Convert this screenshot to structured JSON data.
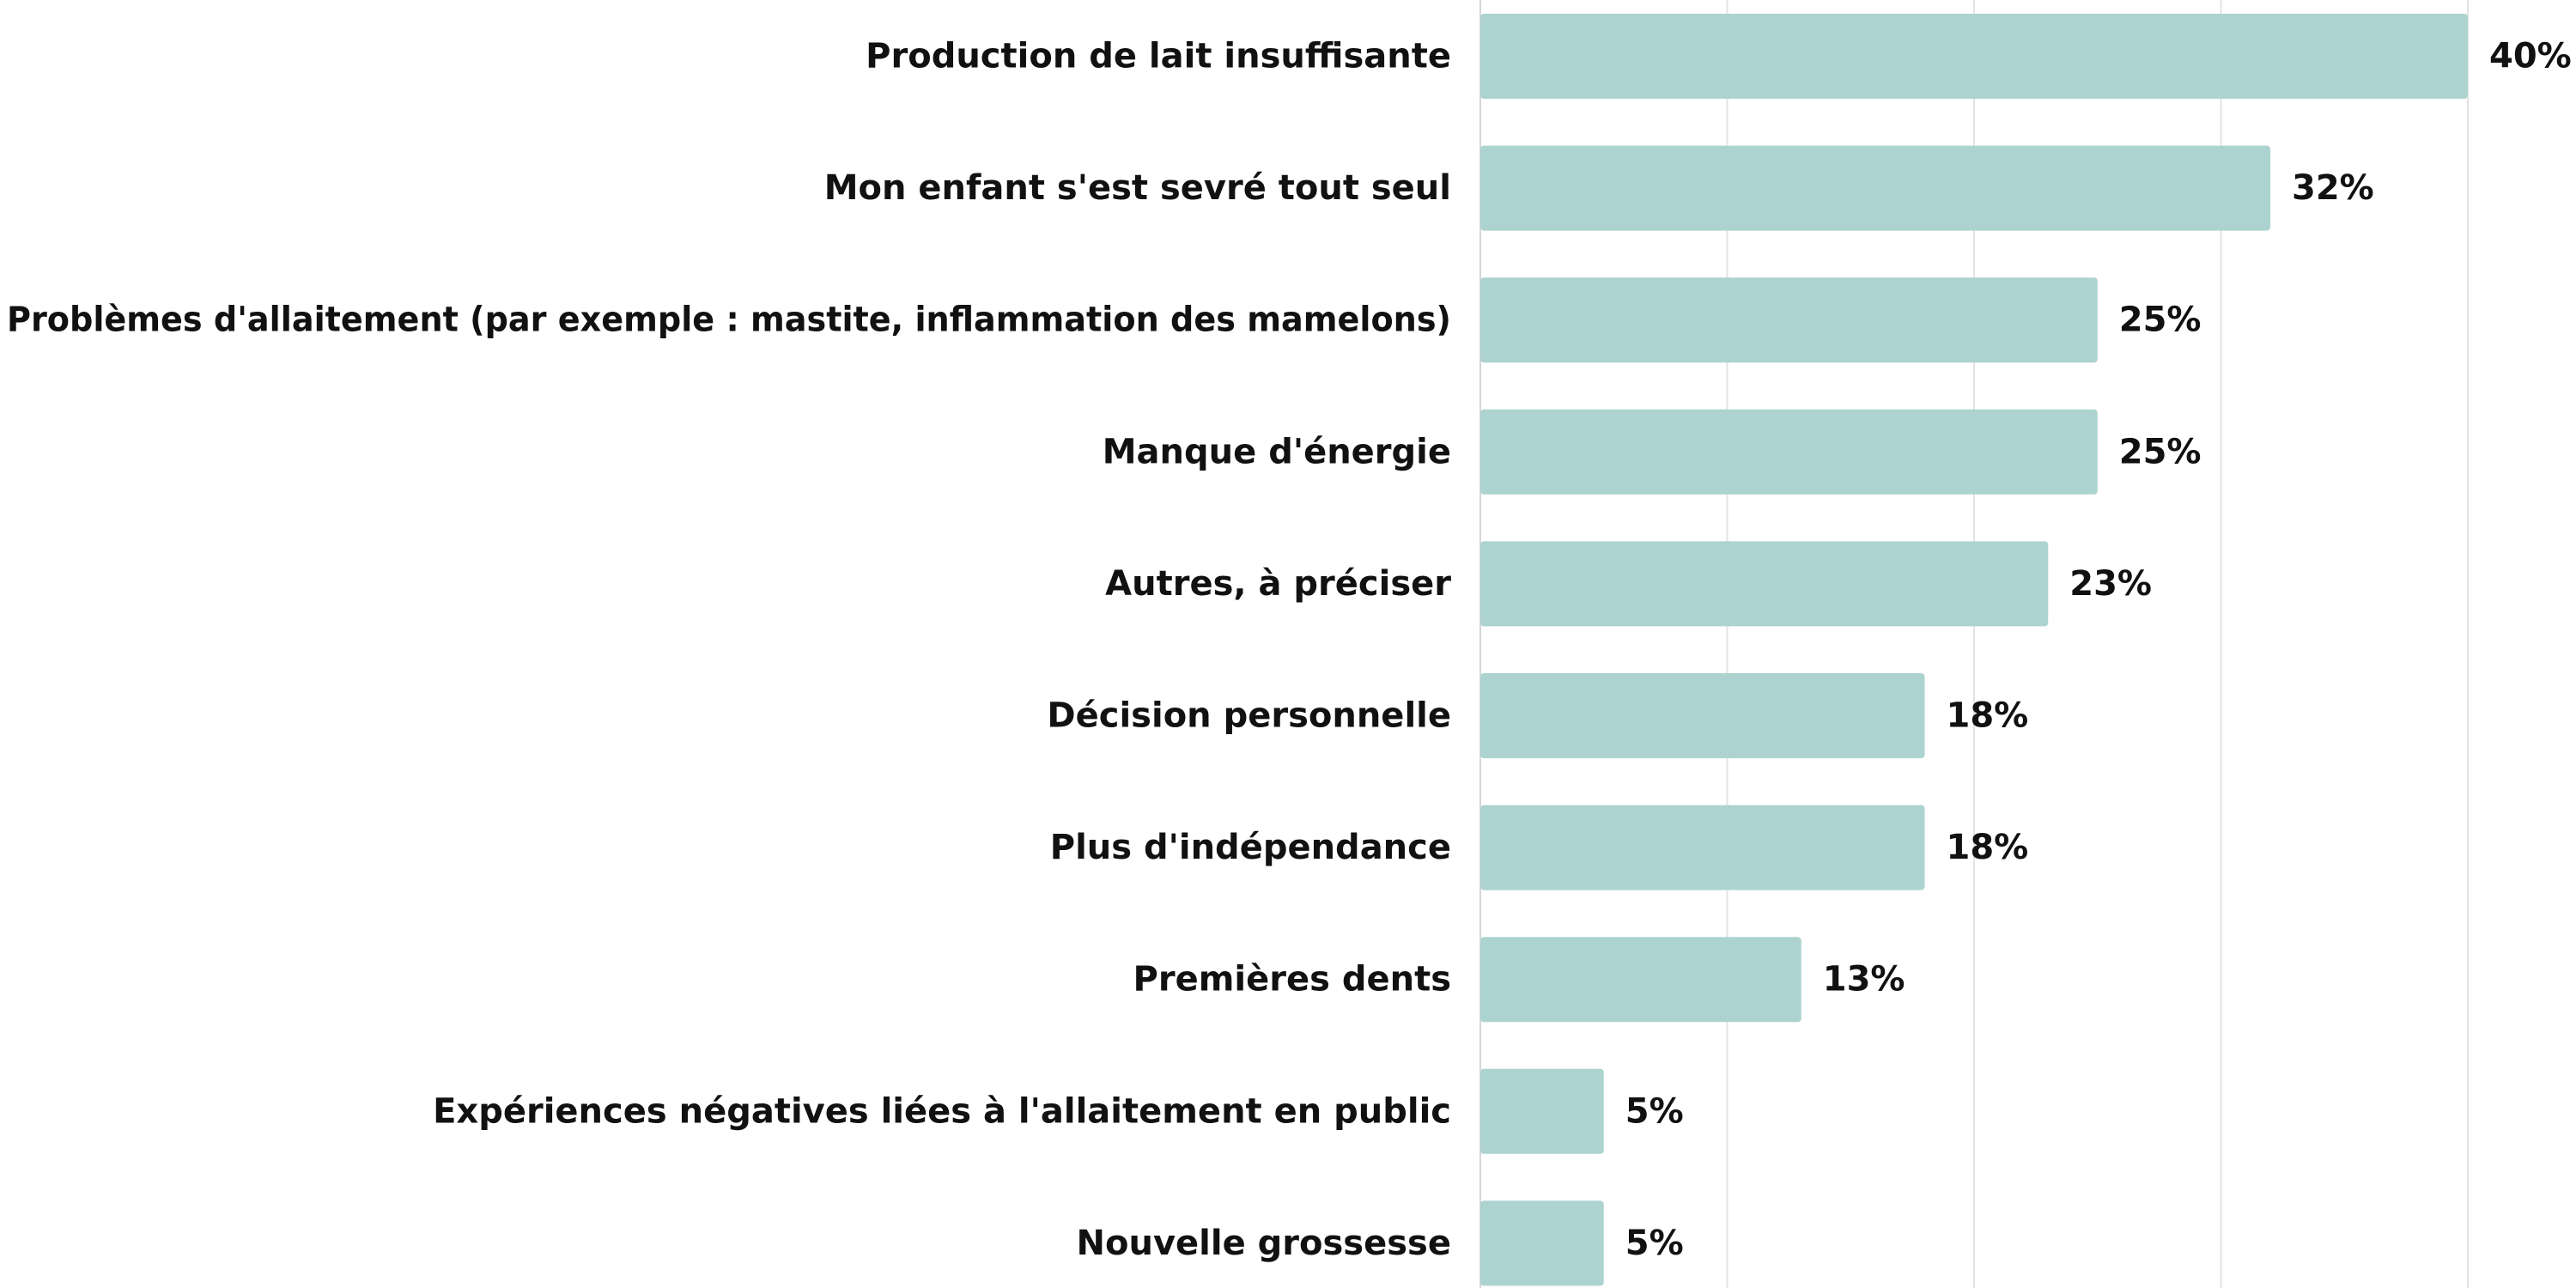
{
  "chart_data": {
    "type": "bar",
    "orientation": "horizontal",
    "categories": [
      "Production de lait insuffisante",
      "Mon enfant s'est sevré tout seul",
      "Problèmes d'allaitement (par exemple : mastite, inflammation des mamelons)",
      "Manque d'énergie",
      "Autres, à préciser",
      "Décision personnelle",
      "Plus d'indépendance",
      "Premières dents",
      "Expériences négatives liées à l'allaitement en public",
      "Nouvelle grossesse"
    ],
    "values": [
      40,
      32,
      25,
      25,
      23,
      18,
      18,
      13,
      5,
      5
    ],
    "value_labels": [
      "40%",
      "32%",
      "25%",
      "25%",
      "23%",
      "18%",
      "18%",
      "13%",
      "5%",
      "5%"
    ],
    "value_unit": "%",
    "xlim": [
      0,
      40
    ],
    "gridlines_at": [
      0,
      10,
      20,
      30,
      40
    ],
    "grid": true,
    "bar_color": "#acd3d0",
    "title": "",
    "xlabel": "",
    "ylabel": ""
  }
}
